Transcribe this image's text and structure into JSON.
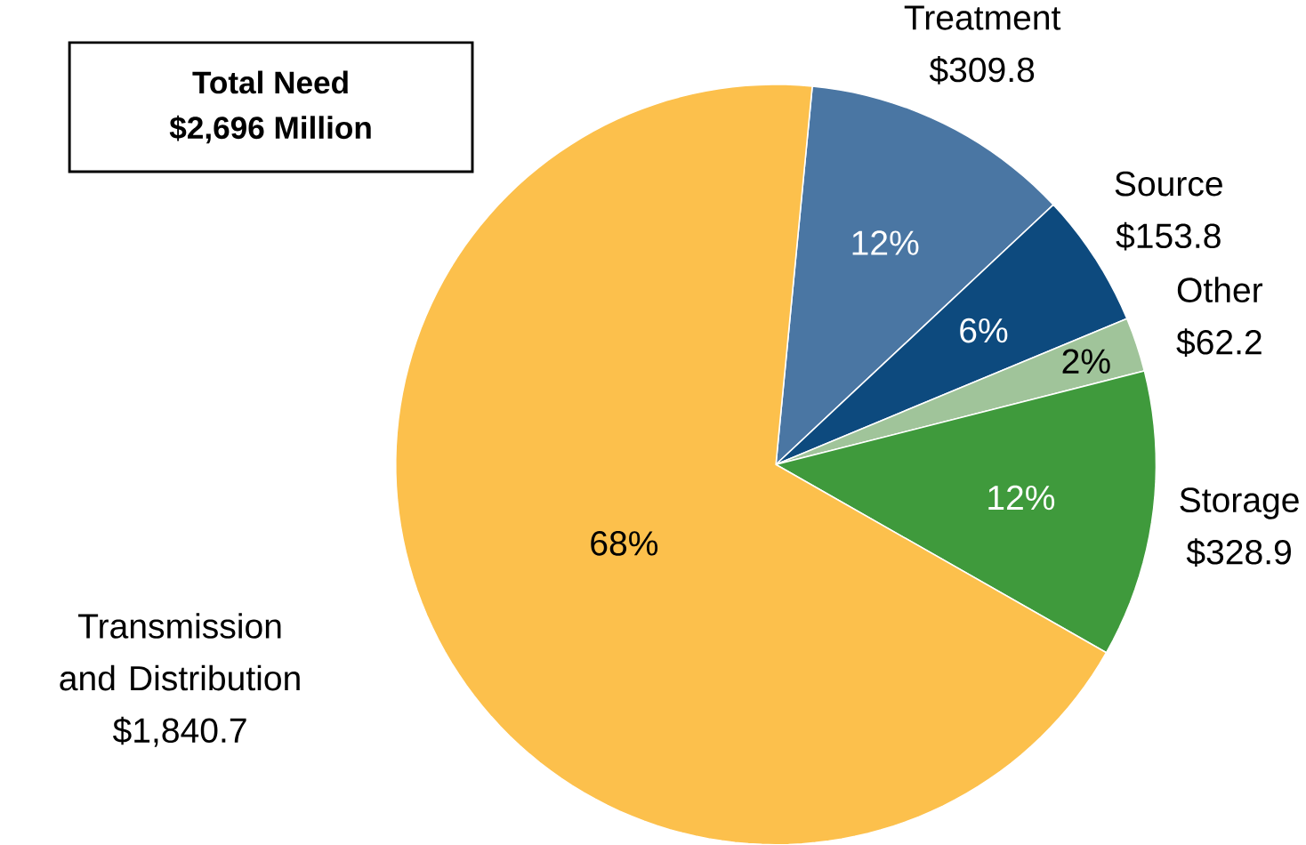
{
  "chart_data": {
    "type": "pie",
    "title": "Total Need",
    "subtitle": "$2,696 Million",
    "categories": [
      "Treatment",
      "Source",
      "Other",
      "Storage",
      "Transmission and Distribution"
    ],
    "values": [
      309.8,
      153.8,
      62.2,
      328.9,
      1840.7
    ],
    "colors": [
      "#4a76a3",
      "#0d4a7e",
      "#a0c49a",
      "#3f9a3c",
      "#fcc04c"
    ],
    "value_labels": [
      "$309.8",
      "$153.8",
      "$62.2",
      "$328.9",
      "$1,840.7"
    ],
    "annotations": [
      "12%",
      "6%",
      "2%",
      "12%",
      "68%"
    ]
  }
}
